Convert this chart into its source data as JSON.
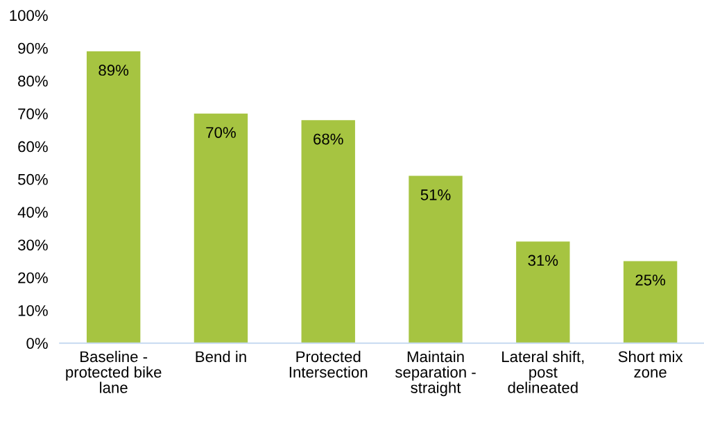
{
  "chart_data": {
    "type": "bar",
    "categories": [
      "Baseline - protected bike lane",
      "Bend in",
      "Protected Intersection",
      "Maintain separation - straight",
      "Lateral shift, post delineated",
      "Short mix zone"
    ],
    "values": [
      89,
      70,
      68,
      51,
      31,
      25
    ],
    "value_labels": [
      "89%",
      "70%",
      "68%",
      "51%",
      "31%",
      "25%"
    ],
    "color": "#a6c441",
    "ylim": [
      0,
      100
    ],
    "yticks": [
      {
        "value": 0,
        "label": "0%"
      },
      {
        "value": 10,
        "label": "10%"
      },
      {
        "value": 20,
        "label": "20%"
      },
      {
        "value": 30,
        "label": "30%"
      },
      {
        "value": 40,
        "label": "40%"
      },
      {
        "value": 50,
        "label": "50%"
      },
      {
        "value": 60,
        "label": "60%"
      },
      {
        "value": 70,
        "label": "70%"
      },
      {
        "value": 80,
        "label": "80%"
      },
      {
        "value": 90,
        "label": "90%"
      },
      {
        "value": 100,
        "label": "100%"
      }
    ]
  }
}
